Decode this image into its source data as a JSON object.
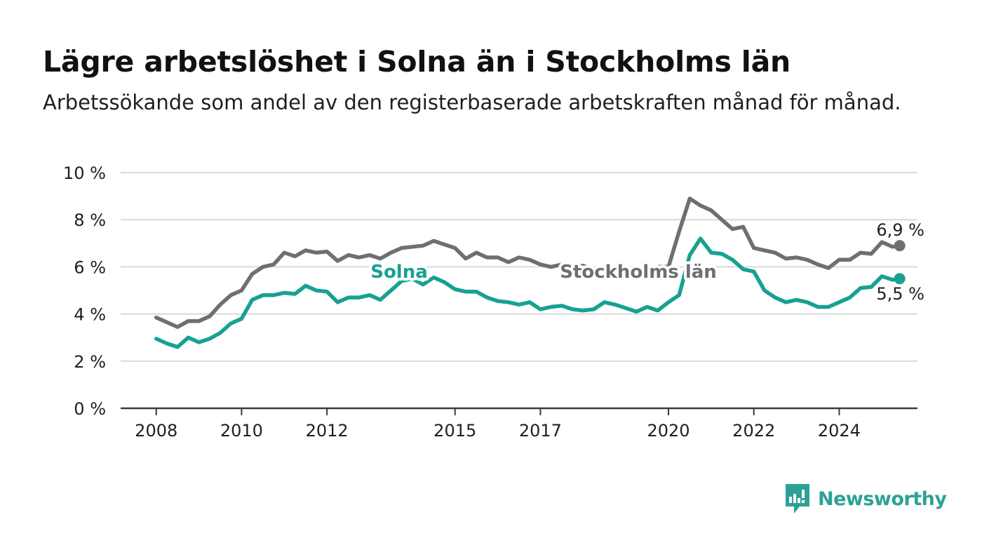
{
  "title": "Lägre arbetslöshet i Solna än i Stockholms län",
  "subtitle": "Arbetssökande som andel av den registerbaserade arbetskraften månad för månad.",
  "brand": {
    "name": "Newsworthy",
    "icon": "newsworthy-logo-icon"
  },
  "colors": {
    "solna": "#17a192",
    "lan": "#6e6e73",
    "grid": "#d9d9d9",
    "axis": "#3a3a3a",
    "text": "#1f1f1f"
  },
  "chart_data": {
    "type": "line",
    "title": "Lägre arbetslöshet i Solna än i Stockholms län",
    "subtitle": "Arbetssökande som andel av den registerbaserade arbetskraften månad för månad.",
    "xlabel": "",
    "ylabel": "",
    "ylim": [
      0,
      10
    ],
    "xlim": [
      "2007-03-01",
      "2025-11-01"
    ],
    "y_ticks": [
      0,
      2,
      4,
      6,
      8,
      10
    ],
    "y_tick_labels": [
      "0 %",
      "2 %",
      "4 %",
      "6 %",
      "8 %",
      "10 %"
    ],
    "x_ticks": [
      "2008-01-01",
      "2010-01-01",
      "2012-01-01",
      "2015-01-01",
      "2017-01-01",
      "2020-01-01",
      "2022-01-01",
      "2024-01-01"
    ],
    "x_tick_labels": [
      "2008",
      "2010",
      "2012",
      "2015",
      "2017",
      "2020",
      "2022",
      "2024"
    ],
    "grid": true,
    "legend": "inline labels",
    "series": [
      {
        "name": "Stockholms län",
        "color": "#6e6e73",
        "end_label": "6,9 %",
        "points": [
          [
            "2008-01",
            3.85
          ],
          [
            "2008-04",
            3.65
          ],
          [
            "2008-07",
            3.45
          ],
          [
            "2008-10",
            3.7
          ],
          [
            "2009-01",
            3.7
          ],
          [
            "2009-04",
            3.9
          ],
          [
            "2009-07",
            4.4
          ],
          [
            "2009-10",
            4.8
          ],
          [
            "2010-01",
            5.0
          ],
          [
            "2010-04",
            5.7
          ],
          [
            "2010-07",
            6.0
          ],
          [
            "2010-10",
            6.1
          ],
          [
            "2011-01",
            6.6
          ],
          [
            "2011-04",
            6.45
          ],
          [
            "2011-07",
            6.7
          ],
          [
            "2011-10",
            6.6
          ],
          [
            "2012-01",
            6.65
          ],
          [
            "2012-04",
            6.25
          ],
          [
            "2012-07",
            6.5
          ],
          [
            "2012-10",
            6.4
          ],
          [
            "2013-01",
            6.5
          ],
          [
            "2013-04",
            6.35
          ],
          [
            "2013-07",
            6.6
          ],
          [
            "2013-10",
            6.8
          ],
          [
            "2014-01",
            6.85
          ],
          [
            "2014-04",
            6.9
          ],
          [
            "2014-07",
            7.1
          ],
          [
            "2014-10",
            6.95
          ],
          [
            "2015-01",
            6.8
          ],
          [
            "2015-04",
            6.35
          ],
          [
            "2015-07",
            6.6
          ],
          [
            "2015-10",
            6.4
          ],
          [
            "2016-01",
            6.4
          ],
          [
            "2016-04",
            6.2
          ],
          [
            "2016-07",
            6.4
          ],
          [
            "2016-10",
            6.3
          ],
          [
            "2017-01",
            6.1
          ],
          [
            "2017-04",
            6.0
          ],
          [
            "2017-07",
            6.1
          ],
          [
            "2017-10",
            6.0
          ],
          [
            "2018-01",
            6.05
          ],
          [
            "2018-04",
            5.9
          ],
          [
            "2018-07",
            6.0
          ],
          [
            "2018-10",
            5.9
          ],
          [
            "2019-01",
            5.9
          ],
          [
            "2019-04",
            5.8
          ],
          [
            "2019-07",
            5.9
          ],
          [
            "2019-10",
            6.0
          ],
          [
            "2020-01",
            6.0
          ],
          [
            "2020-04",
            7.5
          ],
          [
            "2020-07",
            8.9
          ],
          [
            "2020-10",
            8.6
          ],
          [
            "2021-01",
            8.4
          ],
          [
            "2021-04",
            8.0
          ],
          [
            "2021-07",
            7.6
          ],
          [
            "2021-10",
            7.7
          ],
          [
            "2022-01",
            6.8
          ],
          [
            "2022-04",
            6.7
          ],
          [
            "2022-07",
            6.6
          ],
          [
            "2022-10",
            6.35
          ],
          [
            "2023-01",
            6.4
          ],
          [
            "2023-04",
            6.3
          ],
          [
            "2023-07",
            6.1
          ],
          [
            "2023-10",
            5.95
          ],
          [
            "2024-01",
            6.3
          ],
          [
            "2024-04",
            6.3
          ],
          [
            "2024-07",
            6.6
          ],
          [
            "2024-10",
            6.55
          ],
          [
            "2025-01",
            7.05
          ],
          [
            "2025-04",
            6.85
          ],
          [
            "2025-06",
            6.9
          ]
        ]
      },
      {
        "name": "Solna",
        "color": "#17a192",
        "end_label": "5,5 %",
        "points": [
          [
            "2008-01",
            2.95
          ],
          [
            "2008-04",
            2.75
          ],
          [
            "2008-07",
            2.6
          ],
          [
            "2008-10",
            3.0
          ],
          [
            "2009-01",
            2.8
          ],
          [
            "2009-04",
            2.95
          ],
          [
            "2009-07",
            3.2
          ],
          [
            "2009-10",
            3.6
          ],
          [
            "2010-01",
            3.8
          ],
          [
            "2010-04",
            4.6
          ],
          [
            "2010-07",
            4.8
          ],
          [
            "2010-10",
            4.8
          ],
          [
            "2011-01",
            4.9
          ],
          [
            "2011-04",
            4.85
          ],
          [
            "2011-07",
            5.2
          ],
          [
            "2011-10",
            5.0
          ],
          [
            "2012-01",
            4.95
          ],
          [
            "2012-04",
            4.5
          ],
          [
            "2012-07",
            4.7
          ],
          [
            "2012-10",
            4.7
          ],
          [
            "2013-01",
            4.8
          ],
          [
            "2013-04",
            4.6
          ],
          [
            "2013-07",
            5.0
          ],
          [
            "2013-10",
            5.4
          ],
          [
            "2014-01",
            5.5
          ],
          [
            "2014-04",
            5.25
          ],
          [
            "2014-07",
            5.55
          ],
          [
            "2014-10",
            5.35
          ],
          [
            "2015-01",
            5.05
          ],
          [
            "2015-04",
            4.95
          ],
          [
            "2015-07",
            4.95
          ],
          [
            "2015-10",
            4.7
          ],
          [
            "2016-01",
            4.55
          ],
          [
            "2016-04",
            4.5
          ],
          [
            "2016-07",
            4.4
          ],
          [
            "2016-10",
            4.5
          ],
          [
            "2017-01",
            4.2
          ],
          [
            "2017-04",
            4.3
          ],
          [
            "2017-07",
            4.35
          ],
          [
            "2017-10",
            4.2
          ],
          [
            "2018-01",
            4.15
          ],
          [
            "2018-04",
            4.2
          ],
          [
            "2018-07",
            4.5
          ],
          [
            "2018-10",
            4.4
          ],
          [
            "2019-01",
            4.25
          ],
          [
            "2019-04",
            4.1
          ],
          [
            "2019-07",
            4.3
          ],
          [
            "2019-10",
            4.15
          ],
          [
            "2020-01",
            4.5
          ],
          [
            "2020-04",
            4.8
          ],
          [
            "2020-07",
            6.5
          ],
          [
            "2020-10",
            7.2
          ],
          [
            "2021-01",
            6.6
          ],
          [
            "2021-04",
            6.55
          ],
          [
            "2021-07",
            6.3
          ],
          [
            "2021-10",
            5.9
          ],
          [
            "2022-01",
            5.8
          ],
          [
            "2022-04",
            5.0
          ],
          [
            "2022-07",
            4.7
          ],
          [
            "2022-10",
            4.5
          ],
          [
            "2023-01",
            4.6
          ],
          [
            "2023-04",
            4.5
          ],
          [
            "2023-07",
            4.3
          ],
          [
            "2023-10",
            4.3
          ],
          [
            "2024-01",
            4.5
          ],
          [
            "2024-04",
            4.7
          ],
          [
            "2024-07",
            5.1
          ],
          [
            "2024-10",
            5.15
          ],
          [
            "2025-01",
            5.6
          ],
          [
            "2025-04",
            5.45
          ],
          [
            "2025-06",
            5.5
          ]
        ]
      }
    ]
  }
}
